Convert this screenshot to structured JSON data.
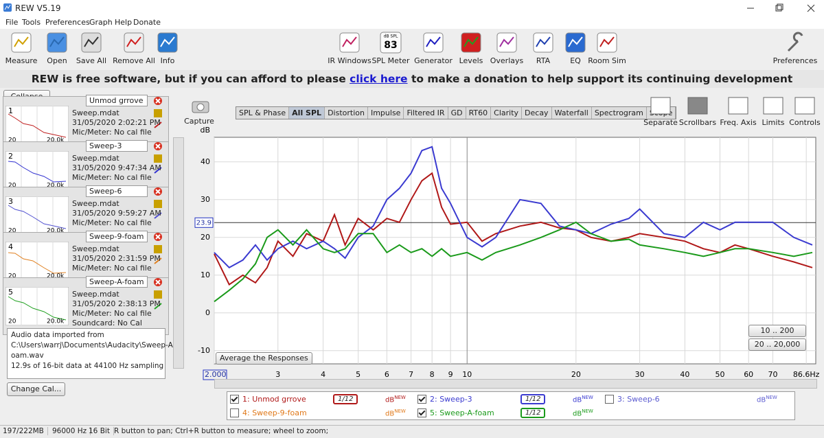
{
  "window": {
    "title": "REW V5.19"
  },
  "menu": [
    "File",
    "Tools",
    "Preferences",
    "Graph",
    "Help",
    "Donate"
  ],
  "toolbar": {
    "left": [
      "Measure",
      "Open",
      "Save All",
      "Remove All",
      "Info"
    ],
    "center": [
      "IR Windows",
      "SPL Meter",
      "Generator",
      "Levels",
      "Overlays",
      "RTA",
      "EQ",
      "Room Sim"
    ],
    "right": [
      "Preferences"
    ],
    "spl_meter": {
      "unit": "dB SPL",
      "value": 83
    }
  },
  "banner": {
    "before": "REW is free software, but if you can afford to please",
    "link": "click here",
    "after": "to make a donation to help support its continuing development"
  },
  "measurements": {
    "collapse": "Collapse",
    "items": [
      {
        "index": 1,
        "name": "Unmod grrove",
        "file": "Sweep.mdat",
        "date": "31/05/2020 2:02:21 PM",
        "mic": "Mic/Meter: No cal file",
        "thumb_min": "20",
        "thumb_max": "20.0k",
        "color": "#c02020"
      },
      {
        "index": 2,
        "name": "Sweep-3",
        "file": "Sweep.mdat",
        "date": "31/05/2020 9:47:34 AM",
        "mic": "Mic/Meter: No cal file",
        "thumb_min": "20",
        "thumb_max": "20.0k",
        "color": "#3030d0"
      },
      {
        "index": 3,
        "name": "Sweep-6",
        "file": "Sweep.mdat",
        "date": "31/05/2020 9:59:27 AM",
        "mic": "Mic/Meter: No cal file",
        "thumb_min": "20",
        "thumb_max": "20.0k",
        "color": "#5050d0"
      },
      {
        "index": 4,
        "name": "Sweep-9-foam",
        "file": "Sweep.mdat",
        "date": "31/05/2020 2:31:59 PM",
        "mic": "Mic/Meter: No cal file",
        "thumb_min": "20",
        "thumb_max": "20.0k",
        "color": "#e08020"
      },
      {
        "index": 5,
        "name": "Sweep-A-foam",
        "file": "Sweep.mdat",
        "date": "31/05/2020 2:38:13 PM",
        "mic": "Mic/Meter: No cal file",
        "soundcard": "Soundcard: No Cal",
        "thumb_min": "20",
        "thumb_max": "20.0k",
        "color": "#20a020"
      }
    ],
    "info": [
      "Audio data imported from",
      "C:\\Users\\warrj\\Documents\\Audacity\\Sweep-A-f",
      "oam.wav",
      "12.9s of 16-bit data at 44100 Hz sampling"
    ],
    "change_cal": "Change Cal..."
  },
  "graph": {
    "capture": "Capture",
    "tabs": [
      "SPL & Phase",
      "All SPL",
      "Distortion",
      "Impulse",
      "Filtered IR",
      "GD",
      "RT60",
      "Clarity",
      "Decay",
      "Waterfall",
      "Spectrogram",
      "Scope"
    ],
    "active_tab": 1,
    "tools": [
      "Separate",
      "Scrollbars",
      "Freq. Axis",
      "Limits",
      "Controls"
    ],
    "average": "Average the Responses",
    "ranges": [
      "10 .. 200",
      "20 .. 20,000"
    ],
    "chart": {
      "type": "line",
      "y_label": "dB",
      "log_x": true,
      "grid": true,
      "xlim": [
        2,
        92
      ],
      "ylim": [
        -13.5,
        46.5
      ],
      "xticks": [
        {
          "value": 2,
          "label": "2.000"
        },
        3,
        4,
        5,
        6,
        7,
        8,
        9,
        10,
        20,
        30,
        40,
        50,
        60,
        70,
        {
          "value": 86.6,
          "label": "86.6Hz"
        }
      ],
      "yticks": [
        -10,
        0,
        10,
        20,
        30,
        40
      ],
      "cursor_y": 23.9,
      "x": [
        2,
        2.2,
        2.4,
        2.6,
        2.8,
        3,
        3.3,
        3.6,
        4,
        4.3,
        4.6,
        5,
        5.5,
        6,
        6.5,
        7,
        7.5,
        8,
        8.5,
        9,
        10,
        11,
        12,
        14,
        16,
        18,
        20,
        22,
        25,
        28,
        30,
        35,
        40,
        45,
        50,
        55,
        60,
        70,
        80,
        90
      ],
      "series": [
        {
          "legend": 0,
          "values": [
            15.6,
            7.5,
            10,
            8,
            12,
            19,
            15,
            21,
            19,
            26,
            18,
            25,
            22,
            25,
            24,
            30,
            35,
            37,
            28,
            23.5,
            24,
            19,
            21,
            23,
            24,
            22.5,
            22,
            20,
            19,
            20,
            21,
            20,
            19,
            17,
            16,
            18,
            17,
            15,
            13.5,
            12
          ]
        },
        {
          "legend": 1,
          "values": [
            16,
            12,
            14,
            18,
            14,
            17,
            19,
            17,
            19,
            17,
            14.5,
            20,
            23,
            30,
            33,
            37,
            43,
            44,
            33,
            29,
            20,
            17.5,
            20,
            30,
            29,
            23,
            22,
            21,
            23.5,
            25,
            27.5,
            21,
            20,
            24,
            22,
            24,
            24,
            24,
            20,
            18
          ]
        },
        {
          "legend": 4,
          "values": [
            3,
            6,
            9,
            13,
            20,
            22,
            18,
            22,
            17,
            16,
            17,
            21,
            21,
            16,
            18,
            16,
            17,
            15,
            17,
            15,
            16,
            14,
            16,
            18,
            20,
            22,
            24,
            21,
            19,
            19.5,
            18,
            17,
            16,
            15,
            16,
            17,
            17,
            16,
            15,
            16
          ]
        }
      ]
    },
    "legend": [
      {
        "name": "1: Unmod grrove",
        "checked": true,
        "color": "#b01818",
        "smoothing": "1/12",
        "unit": "dB",
        "badge": "NEW"
      },
      {
        "name": "2: Sweep-3",
        "checked": true,
        "color": "#3a3ad0",
        "smoothing": "1/12",
        "unit": "dB",
        "badge": "NEW"
      },
      {
        "name": "3: Sweep-6",
        "checked": false,
        "color": "#5a5ad0",
        "unit": "dB",
        "badge": "NEW"
      },
      {
        "name": "4: Sweep-9-foam",
        "checked": false,
        "color": "#e07818",
        "unit": "dB",
        "badge": "NEW"
      },
      {
        "name": "5: Sweep-A-foam",
        "checked": true,
        "color": "#1a9a1a",
        "smoothing": "1/12",
        "unit": "dB",
        "badge": "NEW"
      }
    ]
  },
  "status": [
    "197/222MB",
    "96000 Hz",
    "16 Bit",
    "R button to pan; Ctrl+R button to measure; wheel to zoom;"
  ]
}
